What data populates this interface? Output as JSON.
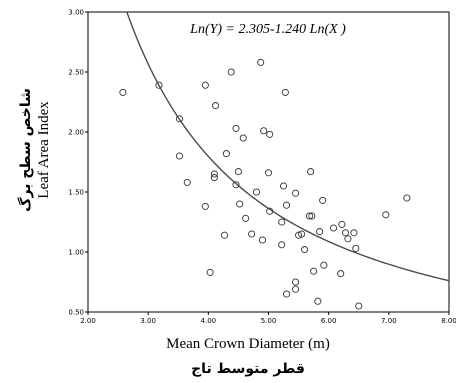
{
  "chart_data": {
    "type": "scatter",
    "equation": "Ln(Y) = 2.305-1.240 Ln(X )",
    "xlabel": "Mean Crown Diameter (m)",
    "xlabel_fa": "قطر متوسط تاج",
    "ylabel": "Leaf Area Index",
    "ylabel_fa": "شاخص سطح برگ",
    "xlim": [
      2.0,
      8.0
    ],
    "ylim": [
      0.5,
      3.0
    ],
    "x_ticks": [
      "2.00",
      "3.00",
      "4.00",
      "5.00",
      "6.00",
      "7.00",
      "8.00"
    ],
    "y_ticks": [
      "0.50",
      "1.00",
      "1.50",
      "2.00",
      "2.50",
      "3.00"
    ],
    "grid": false,
    "fit": {
      "a": 2.305,
      "b": -1.24,
      "form": "Ln(Y) = a + b Ln(X)"
    },
    "points": [
      {
        "x": 2.58,
        "y": 2.33
      },
      {
        "x": 3.18,
        "y": 2.39
      },
      {
        "x": 3.52,
        "y": 2.11
      },
      {
        "x": 3.52,
        "y": 1.8
      },
      {
        "x": 3.65,
        "y": 1.58
      },
      {
        "x": 3.95,
        "y": 1.38
      },
      {
        "x": 3.95,
        "y": 2.39
      },
      {
        "x": 4.03,
        "y": 0.83
      },
      {
        "x": 4.1,
        "y": 1.65
      },
      {
        "x": 4.1,
        "y": 1.62
      },
      {
        "x": 4.12,
        "y": 2.22
      },
      {
        "x": 4.27,
        "y": 1.14
      },
      {
        "x": 4.3,
        "y": 1.82
      },
      {
        "x": 4.38,
        "y": 2.5
      },
      {
        "x": 4.46,
        "y": 2.03
      },
      {
        "x": 4.46,
        "y": 1.56
      },
      {
        "x": 4.5,
        "y": 1.67
      },
      {
        "x": 4.52,
        "y": 1.4
      },
      {
        "x": 4.58,
        "y": 1.95
      },
      {
        "x": 4.62,
        "y": 1.28
      },
      {
        "x": 4.72,
        "y": 1.15
      },
      {
        "x": 4.8,
        "y": 1.5
      },
      {
        "x": 4.87,
        "y": 2.58
      },
      {
        "x": 4.9,
        "y": 1.1
      },
      {
        "x": 4.92,
        "y": 2.01
      },
      {
        "x": 5.02,
        "y": 1.98
      },
      {
        "x": 5.0,
        "y": 1.66
      },
      {
        "x": 5.02,
        "y": 1.34
      },
      {
        "x": 5.22,
        "y": 1.25
      },
      {
        "x": 5.22,
        "y": 1.06
      },
      {
        "x": 5.25,
        "y": 1.55
      },
      {
        "x": 5.28,
        "y": 2.33
      },
      {
        "x": 5.3,
        "y": 1.39
      },
      {
        "x": 5.3,
        "y": 0.65
      },
      {
        "x": 5.45,
        "y": 1.49
      },
      {
        "x": 5.45,
        "y": 0.75
      },
      {
        "x": 5.45,
        "y": 0.69
      },
      {
        "x": 5.5,
        "y": 1.14
      },
      {
        "x": 5.55,
        "y": 1.15
      },
      {
        "x": 5.6,
        "y": 1.02
      },
      {
        "x": 5.68,
        "y": 1.3
      },
      {
        "x": 5.7,
        "y": 1.67
      },
      {
        "x": 5.72,
        "y": 1.3
      },
      {
        "x": 5.75,
        "y": 0.84
      },
      {
        "x": 5.82,
        "y": 0.59
      },
      {
        "x": 5.85,
        "y": 1.17
      },
      {
        "x": 5.9,
        "y": 1.43
      },
      {
        "x": 5.92,
        "y": 0.89
      },
      {
        "x": 6.08,
        "y": 1.2
      },
      {
        "x": 6.22,
        "y": 1.23
      },
      {
        "x": 6.2,
        "y": 0.82
      },
      {
        "x": 6.28,
        "y": 1.16
      },
      {
        "x": 6.32,
        "y": 1.11
      },
      {
        "x": 6.42,
        "y": 1.16
      },
      {
        "x": 6.45,
        "y": 1.03
      },
      {
        "x": 6.5,
        "y": 0.55
      },
      {
        "x": 6.95,
        "y": 1.31
      },
      {
        "x": 7.3,
        "y": 1.45
      }
    ]
  }
}
